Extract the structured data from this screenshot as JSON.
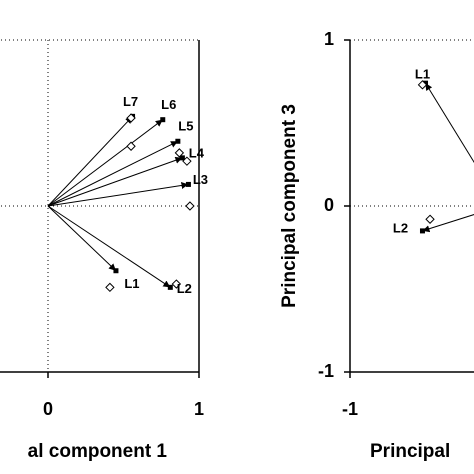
{
  "chart_data": [
    {
      "type": "biplot",
      "x_label": "al component 1",
      "xlim": [
        -1,
        1
      ],
      "ylim": [
        -1,
        1
      ],
      "xticks": [
        0,
        1
      ],
      "points": [
        {
          "label": "L1",
          "arrow": [
            0.45,
            -0.39
          ],
          "diamond": [
            0.41,
            -0.49
          ]
        },
        {
          "label": "L2",
          "arrow": [
            0.81,
            -0.49
          ],
          "diamond": [
            0.85,
            -0.47
          ]
        },
        {
          "label": "L3",
          "arrow": [
            0.93,
            0.13
          ],
          "diamond": [
            0.94,
            0.0
          ]
        },
        {
          "label": "L4",
          "arrow": [
            0.89,
            0.29
          ],
          "diamond": [
            0.92,
            0.27
          ]
        },
        {
          "label": "L5",
          "arrow": [
            0.86,
            0.39
          ],
          "diamond": [
            0.87,
            0.32
          ]
        },
        {
          "label": "L6",
          "arrow": [
            0.76,
            0.52
          ],
          "diamond": [
            0.55,
            0.36
          ]
        },
        {
          "label": "L7",
          "arrow": [
            0.56,
            0.54
          ],
          "diamond": [
            0.55,
            0.53
          ]
        }
      ]
    },
    {
      "type": "biplot",
      "x_label": "Principal",
      "y_label": "Principal component 3",
      "xlim": [
        -1,
        1
      ],
      "ylim": [
        -1,
        1
      ],
      "xticks": [
        -1
      ],
      "yticks": [
        -1,
        0,
        1
      ],
      "points": [
        {
          "label": "L1",
          "arrow": [
            -0.5,
            0.74
          ],
          "diamond": [
            -0.52,
            0.73
          ]
        },
        {
          "label": "L2",
          "arrow": [
            -0.52,
            -0.15
          ],
          "diamond": [
            -0.47,
            -0.08
          ]
        }
      ]
    }
  ]
}
